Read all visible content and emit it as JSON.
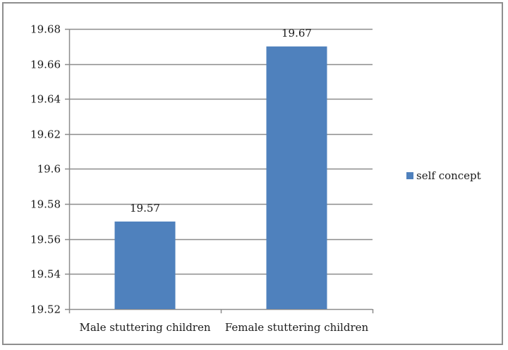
{
  "chart_data": {
    "type": "bar",
    "categories": [
      "Male stuttering children",
      "Female stuttering children"
    ],
    "series": [
      {
        "name": "self concept",
        "values": [
          19.57,
          19.67
        ],
        "color": "#4f81bd"
      }
    ],
    "data_labels": [
      "19.57",
      "19.67"
    ],
    "ylim": [
      19.52,
      19.68
    ],
    "yticks": [
      19.52,
      19.54,
      19.56,
      19.58,
      19.6,
      19.62,
      19.64,
      19.66,
      19.68
    ],
    "ytick_labels": [
      "19.52",
      "19.54",
      "19.56",
      "19.58",
      "19.6",
      "19.62",
      "19.64",
      "19.66",
      "19.68"
    ],
    "grid": true,
    "legend_position": "right",
    "title": "",
    "xlabel": "",
    "ylabel": ""
  }
}
